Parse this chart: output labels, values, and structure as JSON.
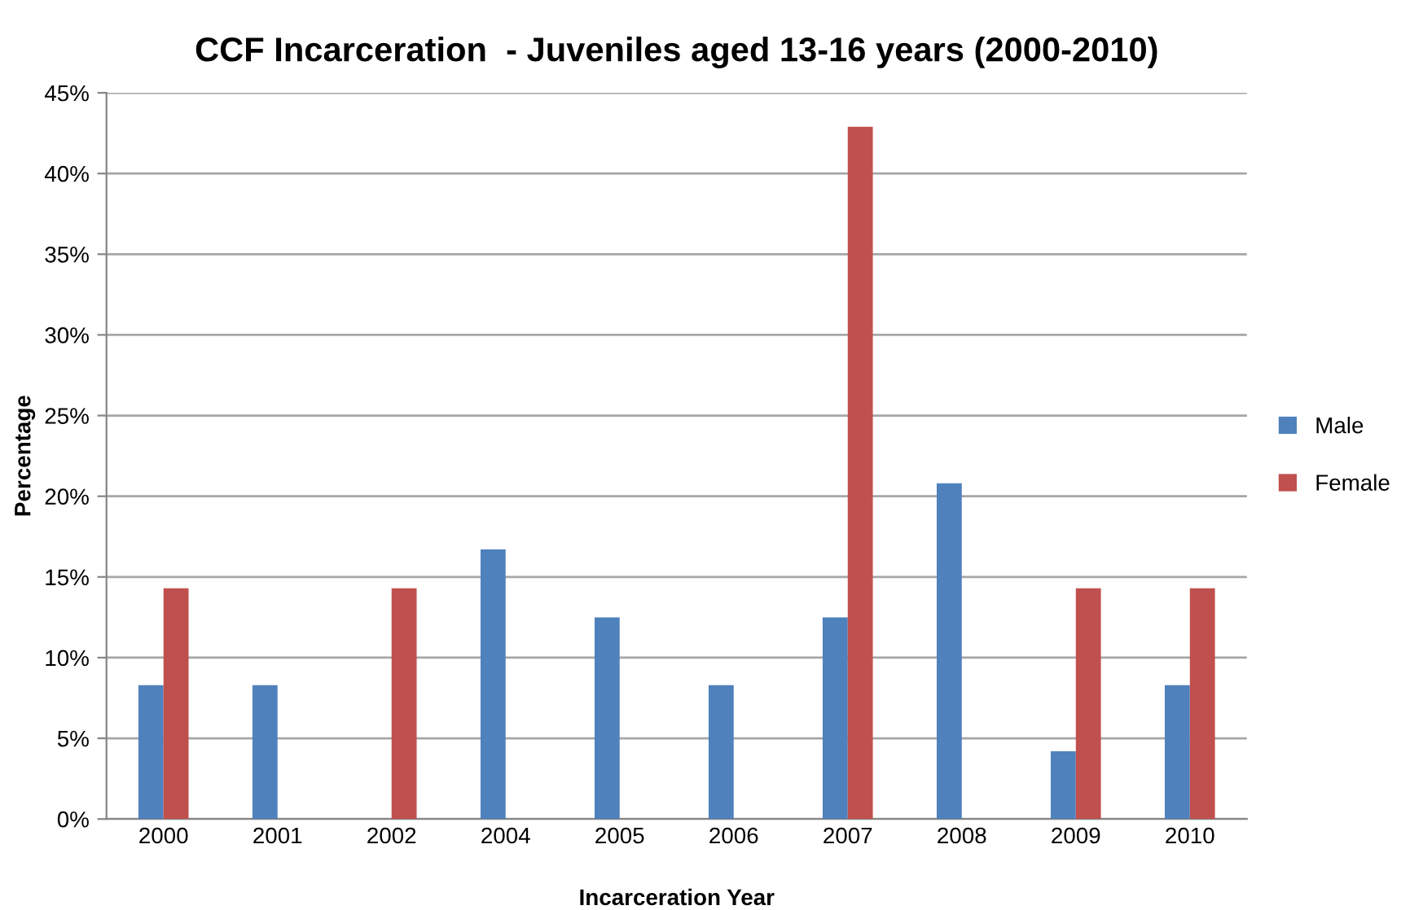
{
  "chart_data": {
    "type": "bar",
    "title": "CCF Incarceration  - Juveniles aged 13-16 years (2000-2010)",
    "xlabel": "Incarceration Year",
    "ylabel": "Percentage",
    "categories": [
      "2000",
      "2001",
      "2002",
      "2004",
      "2005",
      "2006",
      "2007",
      "2008",
      "2009",
      "2010"
    ],
    "series": [
      {
        "name": "Male",
        "color": "#4f81bd",
        "values": [
          8.3,
          8.3,
          0,
          16.7,
          12.5,
          8.3,
          12.5,
          20.8,
          4.2,
          8.3
        ]
      },
      {
        "name": "Female",
        "color": "#c0504d",
        "values": [
          14.3,
          0,
          14.3,
          0,
          0,
          0,
          42.9,
          0,
          14.3,
          14.3
        ]
      }
    ],
    "ylim": [
      0,
      45
    ],
    "yticks": [
      {
        "value": 0,
        "label": "0%"
      },
      {
        "value": 5,
        "label": "5%"
      },
      {
        "value": 10,
        "label": "10%"
      },
      {
        "value": 15,
        "label": "15%"
      },
      {
        "value": 20,
        "label": "20%"
      },
      {
        "value": 25,
        "label": "25%"
      },
      {
        "value": 30,
        "label": "30%"
      },
      {
        "value": 35,
        "label": "35%"
      },
      {
        "value": 40,
        "label": "40%"
      },
      {
        "value": 45,
        "label": "45%"
      }
    ],
    "grid": "y",
    "legend": "right"
  }
}
